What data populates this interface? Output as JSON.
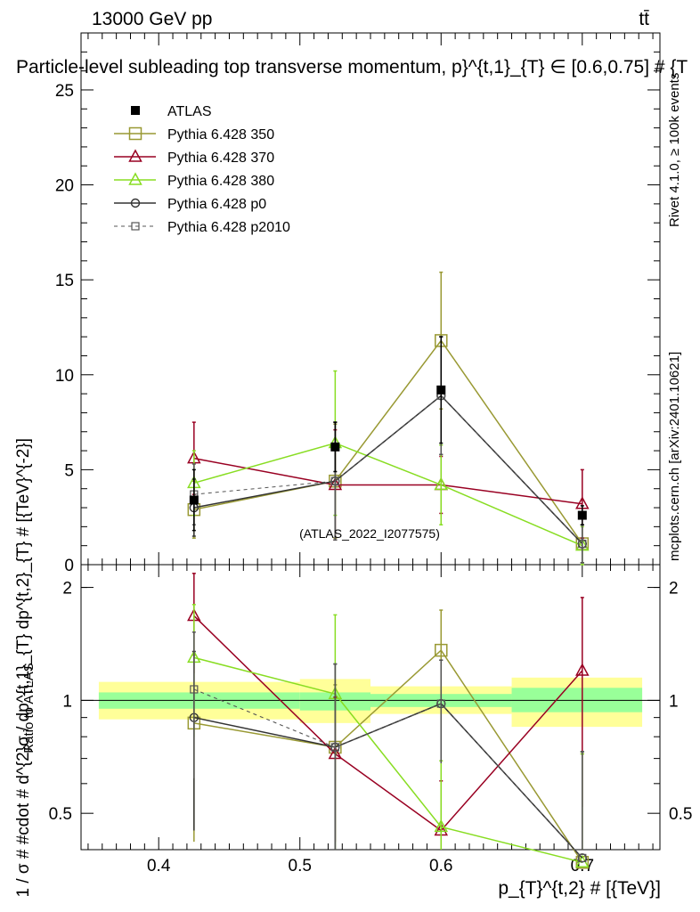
{
  "header": {
    "energy_label": "13000 GeV pp",
    "process_label": "tt̄",
    "title": "Particle-level subleading top transverse momentum, p}^{t,1}_{T} ∈ [0.6,0.75] # {T",
    "right_label_rivet": "Rivet 4.1.0, ≥ 100k events",
    "right_label_mcplots": "mcplots.cern.ch [arXiv:2401.10621]",
    "watermark": "(ATLAS_2022_I2077575)"
  },
  "chart_data": [
    {
      "type": "line",
      "panel": "main",
      "title": "Particle-level subleading top transverse momentum, p}^{t,1}_{T} ∈ [0.6,0.75] # {T",
      "xlabel": "p_{T}^{t,2} # [{TeV}]",
      "ylabel": "1 / σ # #cdot # d^{2}σ / dp^{t,1}_{T} dp^{t,2}_{T} # [{TeV}^{-2}]",
      "xlim": [
        0.345,
        0.755
      ],
      "ylim": [
        0,
        28
      ],
      "yticks": [
        0,
        5,
        10,
        15,
        20,
        25
      ],
      "xticks": [
        0.4,
        0.5,
        0.6,
        0.7
      ],
      "legend_position": "top-left",
      "x": [
        0.425,
        0.525,
        0.6,
        0.7
      ],
      "bins": [
        [
          0.35,
          0.5
        ],
        [
          0.5,
          0.55
        ],
        [
          0.55,
          0.65
        ],
        [
          0.65,
          0.75
        ]
      ],
      "series": [
        {
          "name": "ATLAS",
          "color": "#000000",
          "marker": "filled-square",
          "line": "none",
          "values": [
            3.4,
            6.2,
            9.2,
            2.6
          ],
          "errors": [
            1.6,
            1.3,
            2.8,
            0.5
          ]
        },
        {
          "name": "Pythia 6.428 350",
          "color": "#999933",
          "marker": "open-square",
          "line": "solid",
          "values": [
            2.9,
            4.4,
            11.8,
            1.1
          ],
          "errors": [
            1.5,
            3.0,
            3.6,
            1.0
          ]
        },
        {
          "name": "Pythia 6.428 370",
          "color": "#990022",
          "marker": "open-triangle",
          "line": "solid",
          "values": [
            5.6,
            4.2,
            4.2,
            3.2
          ],
          "errors": [
            1.9,
            2.9,
            1.5,
            1.8
          ]
        },
        {
          "name": "Pythia 6.428 380",
          "color": "#88dd22",
          "marker": "open-triangle",
          "line": "solid",
          "values": [
            4.3,
            6.4,
            4.2,
            1.0
          ],
          "errors": [
            1.7,
            3.8,
            2.1,
            1.0
          ]
        },
        {
          "name": "Pythia 6.428 p0",
          "color": "#333333",
          "marker": "open-circle",
          "line": "solid",
          "values": [
            3.0,
            4.4,
            8.9,
            1.1
          ],
          "errors": [
            1.5,
            3.1,
            3.1,
            1.0
          ]
        },
        {
          "name": "Pythia 6.428 p2010",
          "color": "#555555",
          "marker": "open-small-square",
          "line": "dashed",
          "values": [
            3.7,
            4.4,
            8.9,
            1.1
          ],
          "errors": [
            1.6,
            3.1,
            3.1,
            1.0
          ]
        }
      ]
    },
    {
      "type": "line",
      "panel": "ratio",
      "ylabel": "Ratio to ATLAS",
      "ylim": [
        0.4,
        2.3
      ],
      "ylog": true,
      "yticks": [
        0.5,
        1,
        2
      ],
      "yticklabels": [
        "0.5",
        "1",
        "2"
      ],
      "x": [
        0.425,
        0.525,
        0.6,
        0.7
      ],
      "bins": [
        [
          0.35,
          0.5
        ],
        [
          0.5,
          0.55
        ],
        [
          0.55,
          0.65
        ],
        [
          0.65,
          0.75
        ]
      ],
      "bands": {
        "inner": [
          [
            0.95,
            1.05
          ],
          [
            0.94,
            1.05
          ],
          [
            0.96,
            1.04
          ],
          [
            0.93,
            1.08
          ]
        ],
        "outer": [
          [
            0.89,
            1.12
          ],
          [
            0.87,
            1.14
          ],
          [
            0.92,
            1.09
          ],
          [
            0.85,
            1.15
          ]
        ]
      },
      "series": [
        {
          "name": "Pythia 6.428 350",
          "values": [
            0.87,
            0.75,
            1.36,
            0.37
          ],
          "errors": [
            0.45,
            0.35,
            0.38,
            0.35
          ]
        },
        {
          "name": "Pythia 6.428 370",
          "values": [
            1.68,
            0.72,
            0.45,
            1.2
          ],
          "errors": [
            0.5,
            0.3,
            0.16,
            0.68
          ]
        },
        {
          "name": "Pythia 6.428 380",
          "values": [
            1.3,
            1.04,
            0.46,
            0.37
          ],
          "errors": [
            0.5,
            0.65,
            0.23,
            0.35
          ]
        },
        {
          "name": "Pythia 6.428 p0",
          "values": [
            0.9,
            0.75,
            0.98,
            0.38
          ],
          "errors": [
            0.45,
            0.5,
            0.3,
            0.35
          ]
        },
        {
          "name": "Pythia 6.428 p2010",
          "values": [
            1.07,
            0.75,
            0.98,
            0.38
          ],
          "errors": [
            0.45,
            0.5,
            0.3,
            0.35
          ]
        }
      ]
    }
  ]
}
